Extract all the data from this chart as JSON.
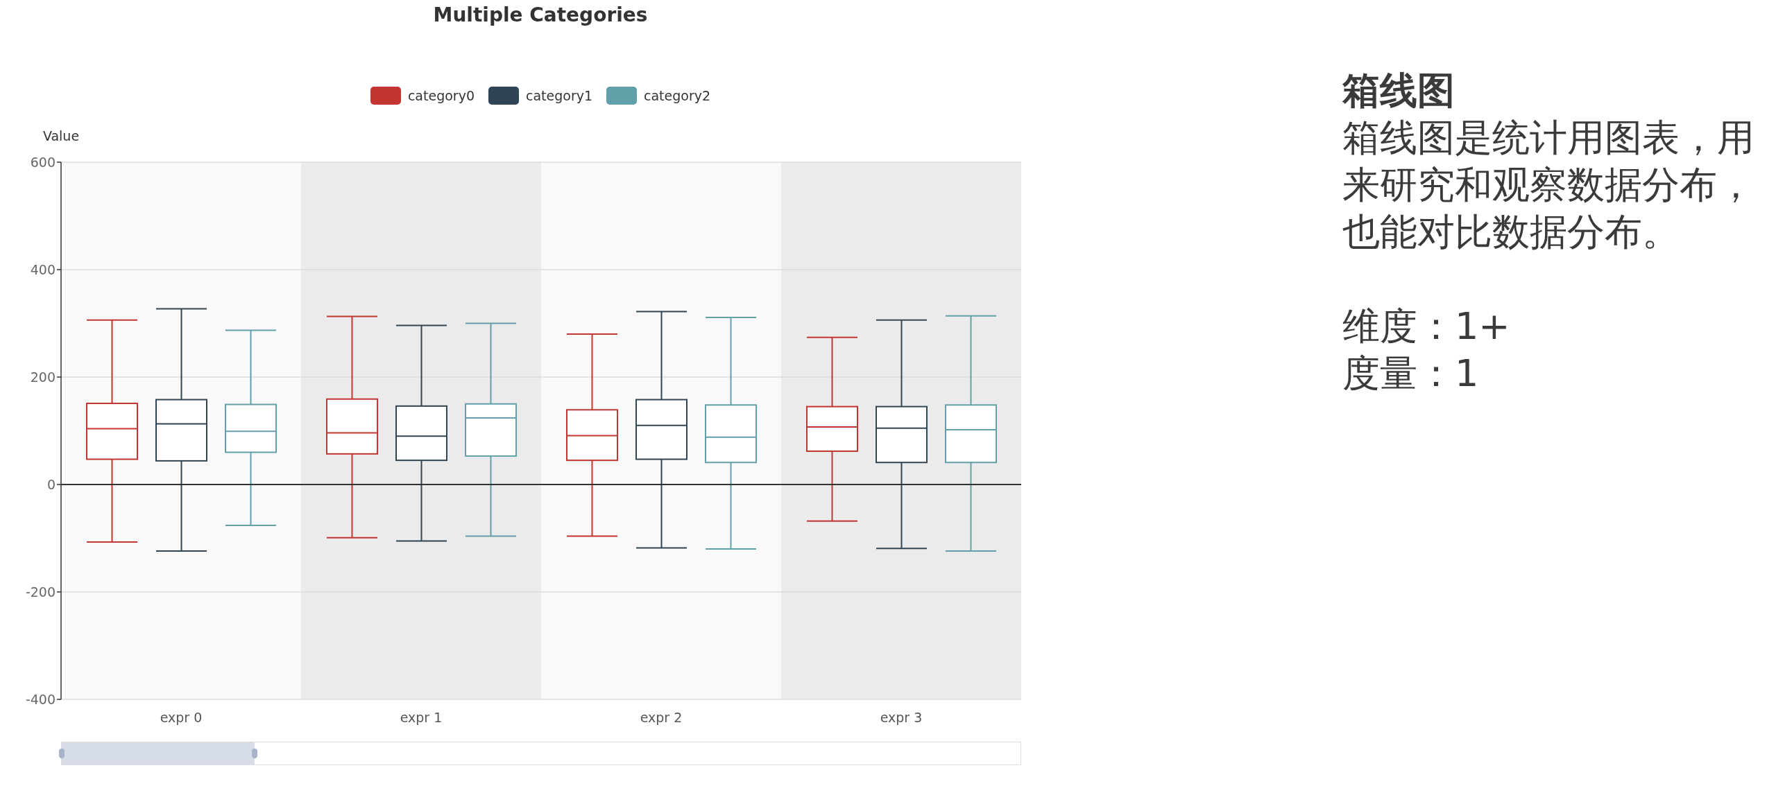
{
  "chart_data": [
    {
      "type": "box",
      "title": "Multiple Categories",
      "ylabel": "Value",
      "categories": [
        "expr 0",
        "expr 1",
        "expr 2",
        "expr 3"
      ],
      "series": [
        {
          "name": "category0",
          "color": "#c23531",
          "boxes": [
            {
              "low": -107,
              "q1": 47,
              "median": 104,
              "q3": 151,
              "high": 306
            },
            {
              "low": -99,
              "q1": 57,
              "median": 96,
              "q3": 159,
              "high": 313
            },
            {
              "low": -96,
              "q1": 45,
              "median": 91,
              "q3": 139,
              "high": 280
            },
            {
              "low": -68,
              "q1": 62,
              "median": 107,
              "q3": 145,
              "high": 274
            }
          ]
        },
        {
          "name": "category1",
          "color": "#2f4554",
          "boxes": [
            {
              "low": -124,
              "q1": 44,
              "median": 113,
              "q3": 158,
              "high": 327
            },
            {
              "low": -105,
              "q1": 45,
              "median": 90,
              "q3": 146,
              "high": 296
            },
            {
              "low": -118,
              "q1": 47,
              "median": 110,
              "q3": 158,
              "high": 322
            },
            {
              "low": -119,
              "q1": 41,
              "median": 105,
              "q3": 145,
              "high": 306
            }
          ]
        },
        {
          "name": "category2",
          "color": "#61a0a8",
          "boxes": [
            {
              "low": -76,
              "q1": 60,
              "median": 99,
              "q3": 149,
              "high": 287
            },
            {
              "low": -96,
              "q1": 53,
              "median": 124,
              "q3": 150,
              "high": 300
            },
            {
              "low": -120,
              "q1": 41,
              "median": 88,
              "q3": 148,
              "high": 311
            },
            {
              "low": -124,
              "q1": 41,
              "median": 102,
              "q3": 148,
              "high": 314
            }
          ]
        }
      ],
      "ylim": [
        -400,
        600
      ],
      "yticks": [
        -400,
        -200,
        0,
        200,
        400,
        600
      ],
      "grid": "y",
      "legend": "top",
      "ref_lines": [
        {
          "axis": "y",
          "value": 0,
          "color": "#333333"
        }
      ]
    },
    {
      "type": "other",
      "title": "箱线图",
      "annotations": [
        "箱线图是统计用图表，用来研究和观察数据分布，也能对比数据分布。",
        "维度：1+",
        "度量：1"
      ]
    }
  ]
}
